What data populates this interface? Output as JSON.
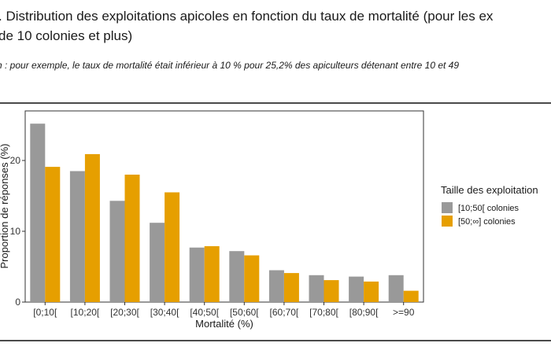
{
  "figure": {
    "title_line1": ". Distribution des exploitations apicoles en fonction du taux de mortalité (pour les ex",
    "title_line2": "de 10 colonies et plus)",
    "note": "n : pour exemple, le taux de mortalité était inférieur à 10 % pour 25,2% des apiculteurs détenant entre 10 et 49"
  },
  "chart_data": {
    "type": "bar",
    "title": "",
    "xlabel": "Mortalité (%)",
    "ylabel": "Proportion de réponses (%)",
    "categories": [
      "[0;10[",
      "[10;20[",
      "[20;30[",
      "[30;40[",
      "[40;50[",
      "[50;60[",
      "[60;70[",
      "[70;80[",
      "[80;90[",
      ">=90"
    ],
    "ylim": [
      0,
      27
    ],
    "yticks": [
      0,
      10,
      20
    ],
    "grid": false,
    "legend": {
      "title": "Taille des exploitation",
      "placement": "right"
    },
    "series": [
      {
        "name": "[10;50[ colonies",
        "color": "#999999",
        "values": [
          25.2,
          18.5,
          14.3,
          11.2,
          7.7,
          7.2,
          4.5,
          3.8,
          3.6,
          3.8
        ]
      },
      {
        "name": "[50;∞] colonies",
        "color": "#E69F00",
        "values": [
          19.1,
          20.9,
          18.0,
          15.5,
          7.9,
          6.6,
          4.1,
          3.1,
          2.9,
          1.6
        ]
      }
    ]
  }
}
